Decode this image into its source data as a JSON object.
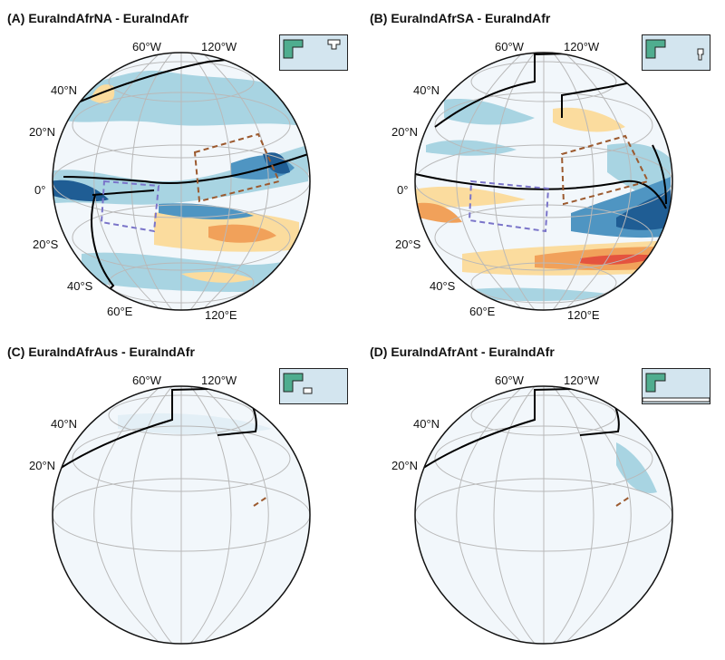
{
  "panels": [
    {
      "title": "(A) EuraIndAfrNA - EuraIndAfr",
      "inset_shape": "north-america-box"
    },
    {
      "title": "(B) EuraIndAfrSA - EuraIndAfr",
      "inset_shape": "south-america-box"
    },
    {
      "title": "(C) EuraIndAfrAus - EuraIndAfr",
      "inset_shape": "australia-box"
    },
    {
      "title": "(D) EuraIndAfrAnt - EuraIndAfr",
      "inset_shape": "antarctica-strip"
    }
  ],
  "lon_labels": {
    "top_left": "60°W",
    "top_right": "120°W",
    "bottom_left": "60°E",
    "bottom_right": "120°E"
  },
  "lat_labels": {
    "n40": "40°N",
    "n20": "20°N",
    "eq": "0°",
    "s20": "20°S",
    "s40": "40°S"
  },
  "colors": {
    "ocean_light": "#f2f7fb",
    "blue_light": "#a8d4e2",
    "blue_mid": "#4f95c2",
    "blue_dark": "#1f5d94",
    "orange_light": "#fbdc9e",
    "orange_mid": "#f1a15a",
    "red": "#e4533f",
    "continent_outline": "#000000",
    "box_purple": "#7a74c9",
    "box_brown": "#9c5a2f",
    "inset_bg": "#d3e5ef",
    "inset_land": "#4fad8f"
  }
}
